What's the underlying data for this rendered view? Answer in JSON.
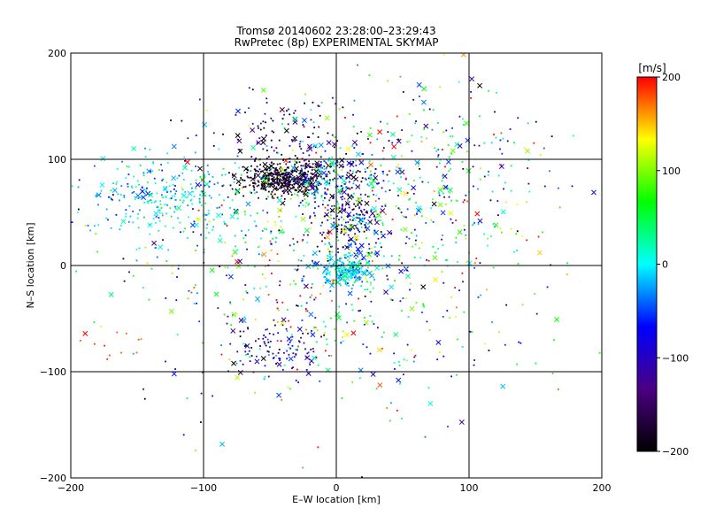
{
  "title_line1": "Tromsø 20140602 23:28:00–23:29:43",
  "title_line2": "RwPretec (8p) EXPERIMENTAL SKYMAP",
  "chart_data": {
    "type": "scatter",
    "xlabel": "E–W location [km]",
    "ylabel": "N–S location [km]",
    "xlim": [
      -200,
      200
    ],
    "ylim": [
      -200,
      200
    ],
    "xticks": [
      -200,
      -100,
      0,
      100,
      200
    ],
    "yticks": [
      -200,
      -100,
      0,
      100,
      200
    ],
    "grid": true,
    "colorbar": {
      "label": "[m/s]",
      "min": -200,
      "max": 200,
      "ticks": [
        200,
        100,
        0,
        -100,
        -200
      ],
      "colormap": [
        "#000000",
        "#4b0082",
        "#0000ff",
        "#00ffff",
        "#00ff00",
        "#ffff00",
        "#ff0000"
      ]
    },
    "clusters": [
      {
        "cx": -40,
        "cy": 82,
        "sx": 18,
        "sy": 8,
        "n": 420,
        "vmean": -190,
        "vsd": 25
      },
      {
        "cx": -5,
        "cy": 85,
        "sx": 25,
        "sy": 12,
        "n": 160,
        "vmean": -60,
        "vsd": 90
      },
      {
        "cx": 10,
        "cy": 45,
        "sx": 12,
        "sy": 20,
        "n": 180,
        "vmean": -130,
        "vsd": 70
      },
      {
        "cx": 5,
        "cy": -5,
        "sx": 10,
        "sy": 8,
        "n": 220,
        "vmean": -10,
        "vsd": 30
      },
      {
        "cx": -130,
        "cy": 65,
        "sx": 30,
        "sy": 18,
        "n": 260,
        "vmean": -10,
        "vsd": 35
      },
      {
        "cx": -40,
        "cy": 130,
        "sx": 30,
        "sy": 15,
        "n": 90,
        "vmean": -160,
        "vsd": 60
      },
      {
        "cx": -45,
        "cy": -80,
        "sx": 18,
        "sy": 12,
        "n": 110,
        "vmean": -110,
        "vsd": 60
      },
      {
        "cx": 40,
        "cy": 60,
        "sx": 50,
        "sy": 50,
        "n": 380,
        "vmean": 30,
        "vsd": 110
      },
      {
        "cx": -50,
        "cy": 20,
        "sx": 60,
        "sy": 40,
        "n": 260,
        "vmean": 10,
        "vsd": 90
      },
      {
        "cx": 30,
        "cy": -60,
        "sx": 60,
        "sy": 40,
        "n": 160,
        "vmean": 40,
        "vsd": 100
      },
      {
        "cx": 100,
        "cy": 100,
        "sx": 30,
        "sy": 40,
        "n": 90,
        "vmean": 0,
        "vsd": 80
      },
      {
        "cx": -170,
        "cy": -75,
        "sx": 18,
        "sy": 8,
        "n": 12,
        "vmean": 185,
        "vsd": 12
      },
      {
        "cx": 0,
        "cy": 0,
        "sx": 110,
        "sy": 90,
        "n": 180,
        "vmean": 0,
        "vsd": 140
      }
    ]
  }
}
